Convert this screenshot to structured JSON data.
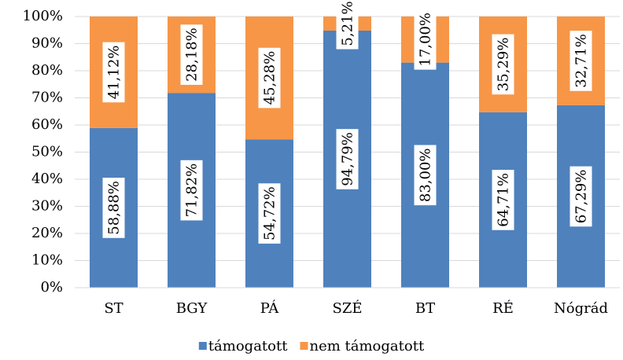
{
  "chart_data": {
    "type": "stacked_bar",
    "categories": [
      "ST",
      "BGY",
      "PÁ",
      "SZÉ",
      "BT",
      "RÉ",
      "Nógrád"
    ],
    "series": [
      {
        "name": "támogatott",
        "color": "#4f81bd",
        "values": [
          58.88,
          71.82,
          54.72,
          94.79,
          83.0,
          64.71,
          67.29
        ],
        "value_labels": [
          "58,88%",
          "71,82%",
          "54,72%",
          "94,79%",
          "83,00%",
          "64,71%",
          "67,29%"
        ]
      },
      {
        "name": "nem támogatott",
        "color": "#f79646",
        "values": [
          41.12,
          28.18,
          45.28,
          5.21,
          17.0,
          35.29,
          32.71
        ],
        "value_labels": [
          "41,12%",
          "28,18%",
          "45,28%",
          "5,21%",
          "17,00%",
          "35,29%",
          "32,71%"
        ]
      }
    ],
    "ylim": [
      0,
      100
    ],
    "yticks": [
      {
        "value": 0,
        "label": "0%"
      },
      {
        "value": 10,
        "label": "10%"
      },
      {
        "value": 20,
        "label": "20%"
      },
      {
        "value": 30,
        "label": "30%"
      },
      {
        "value": 40,
        "label": "40%"
      },
      {
        "value": 50,
        "label": "50%"
      },
      {
        "value": 60,
        "label": "60%"
      },
      {
        "value": 70,
        "label": "70%"
      },
      {
        "value": 80,
        "label": "80%"
      },
      {
        "value": 90,
        "label": "90%"
      },
      {
        "value": 100,
        "label": "100%"
      }
    ],
    "grid": true,
    "legend": "bottom"
  }
}
